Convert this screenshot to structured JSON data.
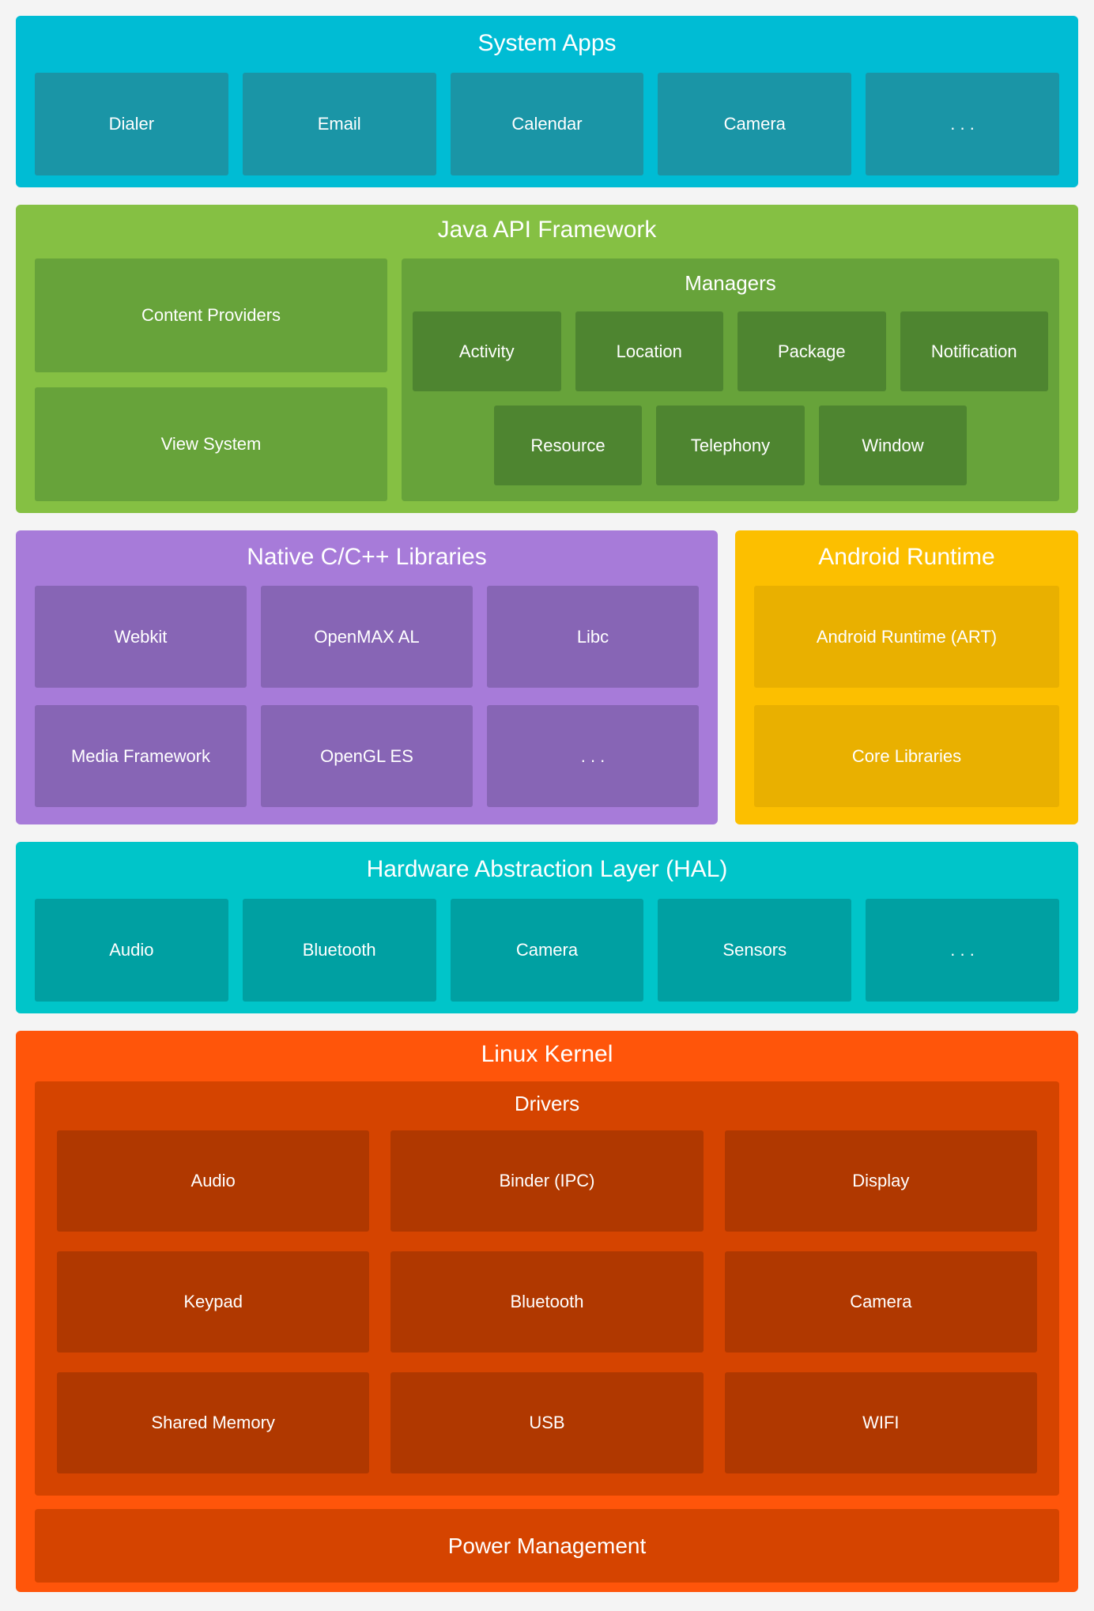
{
  "page": {
    "background": "#f4f4f4",
    "text_color": "#ffffff"
  },
  "layers": {
    "system_apps": {
      "title": "System Apps",
      "bg": "#00bcd4",
      "box_bg": "#1a95a6",
      "items": [
        "Dialer",
        "Email",
        "Calendar",
        "Camera",
        ". . ."
      ]
    },
    "java_api": {
      "title": "Java API Framework",
      "bg": "#85c043",
      "panel_bg": "#67a33a",
      "box_bg": "#4e8530",
      "left_items": [
        "Content Providers",
        "View System"
      ],
      "managers": {
        "title": "Managers",
        "row1": [
          "Activity",
          "Location",
          "Package",
          "Notification"
        ],
        "row2": [
          "Resource",
          "Telephony",
          "Window"
        ]
      }
    },
    "native_libs": {
      "title": "Native C/C++ Libraries",
      "bg": "#a77bd9",
      "box_bg": "#8765b5",
      "items": [
        "Webkit",
        "OpenMAX AL",
        "Libc",
        "Media Framework",
        "OpenGL ES",
        ". . ."
      ]
    },
    "android_runtime": {
      "title": "Android Runtime",
      "bg": "#fcbf00",
      "box_bg": "#e9b000",
      "items": [
        "Android Runtime (ART)",
        "Core Libraries"
      ]
    },
    "hal": {
      "title": "Hardware Abstraction Layer (HAL)",
      "bg": "#00c5c9",
      "box_bg": "#00a0a2",
      "items": [
        "Audio",
        "Bluetooth",
        "Camera",
        "Sensors",
        ". . ."
      ]
    },
    "linux_kernel": {
      "title": "Linux Kernel",
      "bg": "#ff550a",
      "panel_bg": "#d54400",
      "box_bg": "#b03800",
      "drivers": {
        "title": "Drivers",
        "rows": [
          [
            "Audio",
            "Binder (IPC)",
            "Display"
          ],
          [
            "Keypad",
            "Bluetooth",
            "Camera"
          ],
          [
            "Shared Memory",
            "USB",
            "WIFI"
          ]
        ]
      },
      "power_label": "Power Management"
    }
  }
}
